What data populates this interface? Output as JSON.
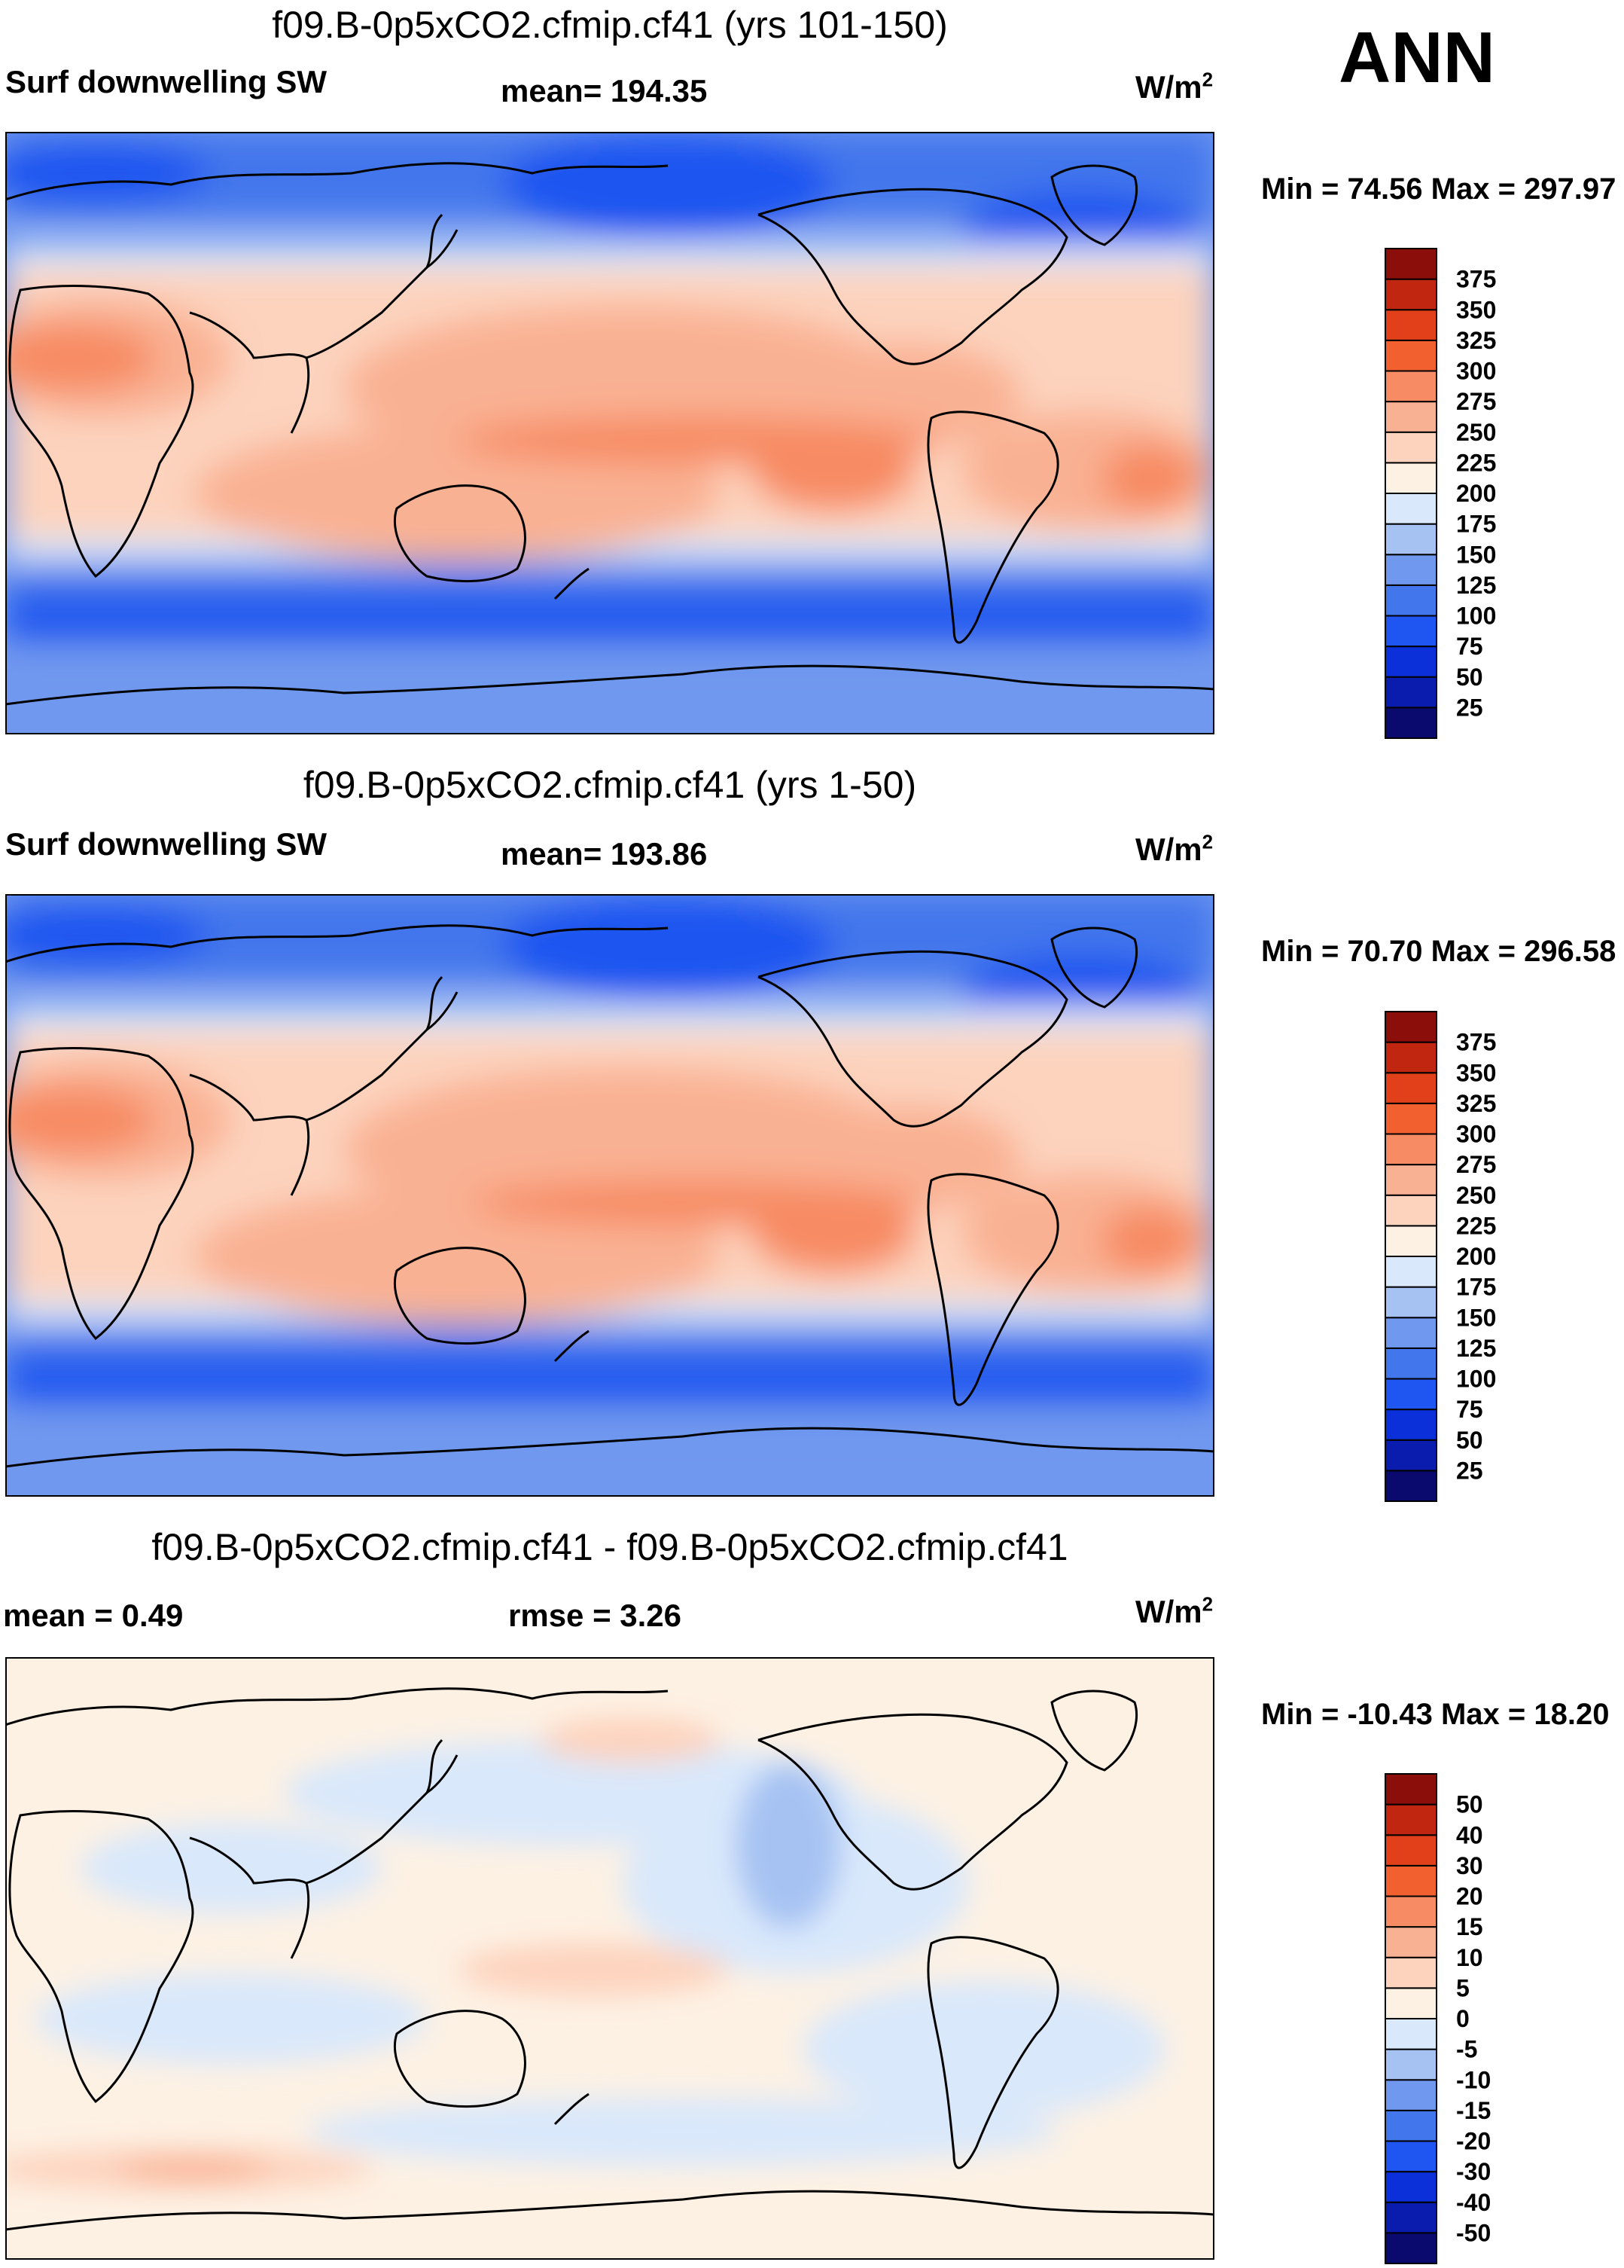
{
  "season": "ANN",
  "panels": [
    {
      "title": "f09.B-0p5xCO2.cfmip.cf41 (yrs 101-150)",
      "left_label": "Surf downwelling SW",
      "center_label": "mean= 194.35",
      "units_base": "W/m",
      "units_exp": "2",
      "minmax": "Min =  74.56 Max = 297.97"
    },
    {
      "title": "f09.B-0p5xCO2.cfmip.cf41 (yrs 1-50)",
      "left_label": "Surf downwelling SW",
      "center_label": "mean= 193.86",
      "units_base": "W/m",
      "units_exp": "2",
      "minmax": "Min =  70.70 Max = 296.58"
    },
    {
      "title": "f09.B-0p5xCO2.cfmip.cf41 - f09.B-0p5xCO2.cfmip.cf41",
      "left_label": "mean =   0.49",
      "center_label": "rmse =   3.26",
      "units_base": "W/m",
      "units_exp": "2",
      "minmax": "Min = -10.43 Max =  18.20"
    }
  ],
  "chart_data": [
    {
      "type": "heatmap",
      "title": "f09.B-0p5xCO2.cfmip.cf41 (yrs 101-150)",
      "variable": "Surf downwelling SW",
      "units": "W/m2",
      "mean": 194.35,
      "min": 74.56,
      "max": 297.97,
      "x_range": [
        0,
        360
      ],
      "y_range": [
        -90,
        90
      ],
      "colorbar_levels": [
        25,
        50,
        75,
        100,
        125,
        150,
        175,
        200,
        225,
        250,
        275,
        300,
        325,
        350,
        375
      ],
      "colors": [
        "#0a0a6e",
        "#0a1cae",
        "#0b2fd8",
        "#1f55f0",
        "#4276ec",
        "#7098ef",
        "#a6c2f3",
        "#d9e8fb",
        "#fdf1e4",
        "#fdd3bd",
        "#f9b193",
        "#f78b63",
        "#f2602f",
        "#e1401a",
        "#c02610",
        "#8b0e0b"
      ]
    },
    {
      "type": "heatmap",
      "title": "f09.B-0p5xCO2.cfmip.cf41 (yrs 1-50)",
      "variable": "Surf downwelling SW",
      "units": "W/m2",
      "mean": 193.86,
      "min": 70.7,
      "max": 296.58,
      "x_range": [
        0,
        360
      ],
      "y_range": [
        -90,
        90
      ],
      "colorbar_levels": [
        25,
        50,
        75,
        100,
        125,
        150,
        175,
        200,
        225,
        250,
        275,
        300,
        325,
        350,
        375
      ],
      "colors": [
        "#0a0a6e",
        "#0a1cae",
        "#0b2fd8",
        "#1f55f0",
        "#4276ec",
        "#7098ef",
        "#a6c2f3",
        "#d9e8fb",
        "#fdf1e4",
        "#fdd3bd",
        "#f9b193",
        "#f78b63",
        "#f2602f",
        "#e1401a",
        "#c02610",
        "#8b0e0b"
      ]
    },
    {
      "type": "heatmap",
      "title": "f09.B-0p5xCO2.cfmip.cf41 - f09.B-0p5xCO2.cfmip.cf41",
      "variable": "difference",
      "units": "W/m2",
      "mean": 0.49,
      "rmse": 3.26,
      "min": -10.43,
      "max": 18.2,
      "x_range": [
        0,
        360
      ],
      "y_range": [
        -90,
        90
      ],
      "colorbar_levels": [
        -50,
        -40,
        -30,
        -20,
        -15,
        -10,
        -5,
        0,
        5,
        10,
        15,
        20,
        30,
        40,
        50
      ],
      "colors": [
        "#0a0a6e",
        "#0a1cae",
        "#0b2fd8",
        "#1f55f0",
        "#4276ec",
        "#7098ef",
        "#a6c2f3",
        "#d9e8fb",
        "#fdf1e4",
        "#fdd3bd",
        "#f9b193",
        "#f78b63",
        "#f2602f",
        "#e1401a",
        "#c02610",
        "#8b0e0b"
      ]
    }
  ]
}
